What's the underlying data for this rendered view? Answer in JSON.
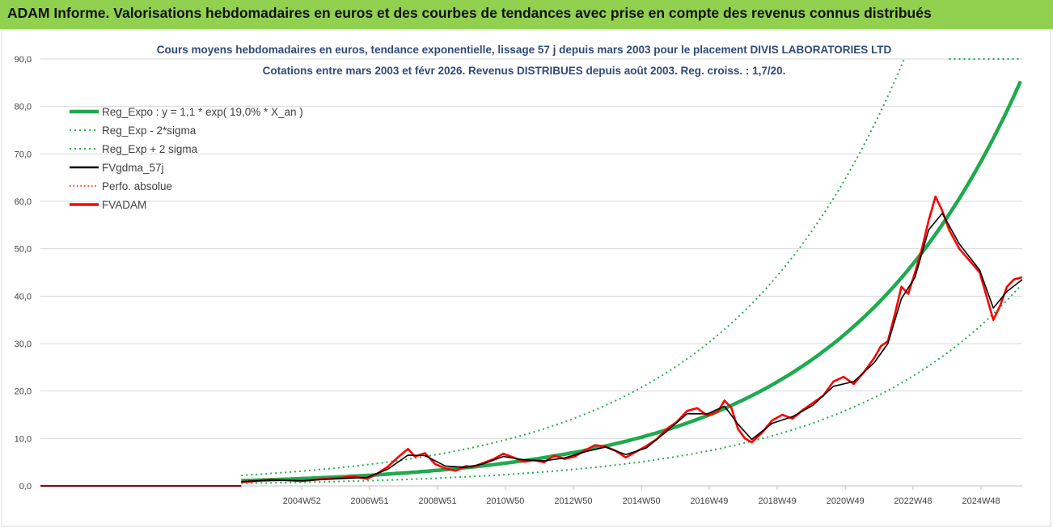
{
  "banner": {
    "text": "ADAM Informe. Valorisations hebdomadaires en euros et des courbes de tendances avec prise en compte des revenus connus distribués"
  },
  "colors": {
    "banner_bg": "#92d050",
    "reg_expo": "#1faa4f",
    "sigma": "#22b04d",
    "fvgdma": "#000000",
    "perfo": "#ff0000",
    "fvadam": "#ff0000",
    "title": "#2e4a7a"
  },
  "chart_data": {
    "type": "line",
    "title_lines": [
      "Cours moyens hebdomadaires en euros, tendance exponentielle, lissage 57 j depuis mars 2003 pour le placement DIVIS LABORATORIES LTD",
      "Cotations entre mars 2003 et févr 2026. Revenus DISTRIBUES depuis août 2003.  Reg. croiss. : 1,7/20."
    ],
    "ylim": [
      0,
      90
    ],
    "y_ticks": [
      "0,0",
      "10,0",
      "20,0",
      "30,0",
      "40,0",
      "50,0",
      "60,0",
      "70,0",
      "80,0",
      "90,0"
    ],
    "x_ticks": [
      {
        "label": "2004W52",
        "year": 2004.98
      },
      {
        "label": "2006W51",
        "year": 2006.97
      },
      {
        "label": "2008W51",
        "year": 2008.97
      },
      {
        "label": "2010W50",
        "year": 2010.96
      },
      {
        "label": "2012W50",
        "year": 2012.96
      },
      {
        "label": "2014W50",
        "year": 2014.96
      },
      {
        "label": "2016W49",
        "year": 2016.95
      },
      {
        "label": "2018W49",
        "year": 2018.95
      },
      {
        "label": "2020W49",
        "year": 2020.95
      },
      {
        "label": "2022W48",
        "year": 2022.94
      },
      {
        "label": "2024W48",
        "year": 2024.94
      }
    ],
    "x_range_years": [
      1997.3,
      2026.15
    ],
    "grid": true,
    "legend_position": "top-left",
    "legend": [
      {
        "key": "reg_expo",
        "label": "Reg_Expo : y = 1,1 * exp( 19,0% *  X_an )",
        "style": "solid-thick"
      },
      {
        "key": "reg_minus",
        "label": "Reg_Exp - 2*sigma",
        "style": "dotted"
      },
      {
        "key": "reg_plus",
        "label": "Reg_Exp + 2 sigma",
        "style": "dotted"
      },
      {
        "key": "fvgdma",
        "label": "FVgdma_57j",
        "style": "solid"
      },
      {
        "key": "perfo",
        "label": "Perfo. absolue",
        "style": "dotted"
      },
      {
        "key": "fvadam",
        "label": "FVADAM",
        "style": "solid-thick"
      }
    ],
    "regression": {
      "a": 1.1,
      "rate": 0.19,
      "start_year": 2003.2,
      "end_year": 2026.15,
      "sigma_minus_factor": 0.495,
      "sigma_plus_factor": 2.02
    },
    "flat_segment": {
      "from_year": 1997.3,
      "to_year": 2003.2,
      "value": 0.0
    },
    "fvadam": [
      [
        2003.2,
        0.8
      ],
      [
        2003.6,
        1.0
      ],
      [
        2004.0,
        1.3
      ],
      [
        2004.5,
        1.2
      ],
      [
        2005.0,
        1.0
      ],
      [
        2005.5,
        1.4
      ],
      [
        2006.0,
        1.6
      ],
      [
        2006.5,
        2.0
      ],
      [
        2006.9,
        1.5
      ],
      [
        2007.2,
        2.6
      ],
      [
        2007.5,
        4.0
      ],
      [
        2007.8,
        6.0
      ],
      [
        2008.1,
        7.8
      ],
      [
        2008.3,
        6.2
      ],
      [
        2008.6,
        6.9
      ],
      [
        2008.9,
        4.6
      ],
      [
        2009.2,
        3.7
      ],
      [
        2009.5,
        3.2
      ],
      [
        2009.8,
        4.2
      ],
      [
        2010.0,
        4.0
      ],
      [
        2010.3,
        4.8
      ],
      [
        2010.6,
        5.6
      ],
      [
        2010.9,
        6.8
      ],
      [
        2011.2,
        6.0
      ],
      [
        2011.5,
        5.1
      ],
      [
        2011.8,
        5.4
      ],
      [
        2012.1,
        5.0
      ],
      [
        2012.4,
        6.4
      ],
      [
        2012.7,
        5.7
      ],
      [
        2013.0,
        6.2
      ],
      [
        2013.3,
        7.5
      ],
      [
        2013.6,
        8.6
      ],
      [
        2013.9,
        8.3
      ],
      [
        2014.2,
        7.4
      ],
      [
        2014.5,
        6.0
      ],
      [
        2014.8,
        7.2
      ],
      [
        2015.1,
        8.4
      ],
      [
        2015.4,
        9.8
      ],
      [
        2015.7,
        12.0
      ],
      [
        2016.0,
        13.5
      ],
      [
        2016.3,
        15.8
      ],
      [
        2016.6,
        16.4
      ],
      [
        2016.9,
        14.8
      ],
      [
        2017.2,
        15.6
      ],
      [
        2017.4,
        18.0
      ],
      [
        2017.6,
        16.5
      ],
      [
        2017.8,
        12.0
      ],
      [
        2018.0,
        10.0
      ],
      [
        2018.2,
        9.2
      ],
      [
        2018.5,
        11.2
      ],
      [
        2018.8,
        13.8
      ],
      [
        2019.1,
        15.0
      ],
      [
        2019.4,
        14.2
      ],
      [
        2019.7,
        16.0
      ],
      [
        2020.0,
        17.5
      ],
      [
        2020.3,
        19.0
      ],
      [
        2020.6,
        22.0
      ],
      [
        2020.9,
        23.0
      ],
      [
        2021.2,
        21.5
      ],
      [
        2021.5,
        24.0
      ],
      [
        2021.8,
        27.0
      ],
      [
        2022.0,
        29.5
      ],
      [
        2022.2,
        30.5
      ],
      [
        2022.4,
        36.0
      ],
      [
        2022.6,
        42.0
      ],
      [
        2022.8,
        40.5
      ],
      [
        2023.0,
        45.0
      ],
      [
        2023.2,
        50.0
      ],
      [
        2023.4,
        56.0
      ],
      [
        2023.6,
        61.0
      ],
      [
        2023.8,
        58.0
      ],
      [
        2024.0,
        54.0
      ],
      [
        2024.3,
        50.0
      ],
      [
        2024.6,
        47.5
      ],
      [
        2024.9,
        45.0
      ],
      [
        2025.1,
        40.0
      ],
      [
        2025.3,
        35.0
      ],
      [
        2025.5,
        38.0
      ],
      [
        2025.7,
        42.0
      ],
      [
        2025.9,
        43.5
      ],
      [
        2026.15,
        44.0
      ]
    ],
    "fvgdma": [
      [
        2003.2,
        0.9
      ],
      [
        2004.0,
        1.2
      ],
      [
        2005.0,
        1.1
      ],
      [
        2006.0,
        1.5
      ],
      [
        2006.9,
        1.8
      ],
      [
        2007.5,
        3.5
      ],
      [
        2008.1,
        6.5
      ],
      [
        2008.6,
        6.4
      ],
      [
        2009.2,
        4.2
      ],
      [
        2009.8,
        3.9
      ],
      [
        2010.3,
        4.6
      ],
      [
        2010.9,
        6.2
      ],
      [
        2011.5,
        5.5
      ],
      [
        2012.1,
        5.3
      ],
      [
        2012.7,
        5.9
      ],
      [
        2013.3,
        7.2
      ],
      [
        2013.9,
        8.2
      ],
      [
        2014.5,
        6.6
      ],
      [
        2015.1,
        8.0
      ],
      [
        2015.7,
        11.5
      ],
      [
        2016.3,
        15.2
      ],
      [
        2016.9,
        15.2
      ],
      [
        2017.4,
        16.8
      ],
      [
        2017.8,
        13.0
      ],
      [
        2018.2,
        9.8
      ],
      [
        2018.8,
        13.2
      ],
      [
        2019.4,
        14.6
      ],
      [
        2020.0,
        17.0
      ],
      [
        2020.6,
        21.0
      ],
      [
        2021.2,
        22.0
      ],
      [
        2021.8,
        26.0
      ],
      [
        2022.2,
        30.0
      ],
      [
        2022.6,
        39.5
      ],
      [
        2023.0,
        44.0
      ],
      [
        2023.4,
        54.0
      ],
      [
        2023.8,
        57.5
      ],
      [
        2024.3,
        51.0
      ],
      [
        2024.9,
        45.5
      ],
      [
        2025.3,
        37.5
      ],
      [
        2025.7,
        41.0
      ],
      [
        2026.15,
        43.5
      ]
    ]
  }
}
